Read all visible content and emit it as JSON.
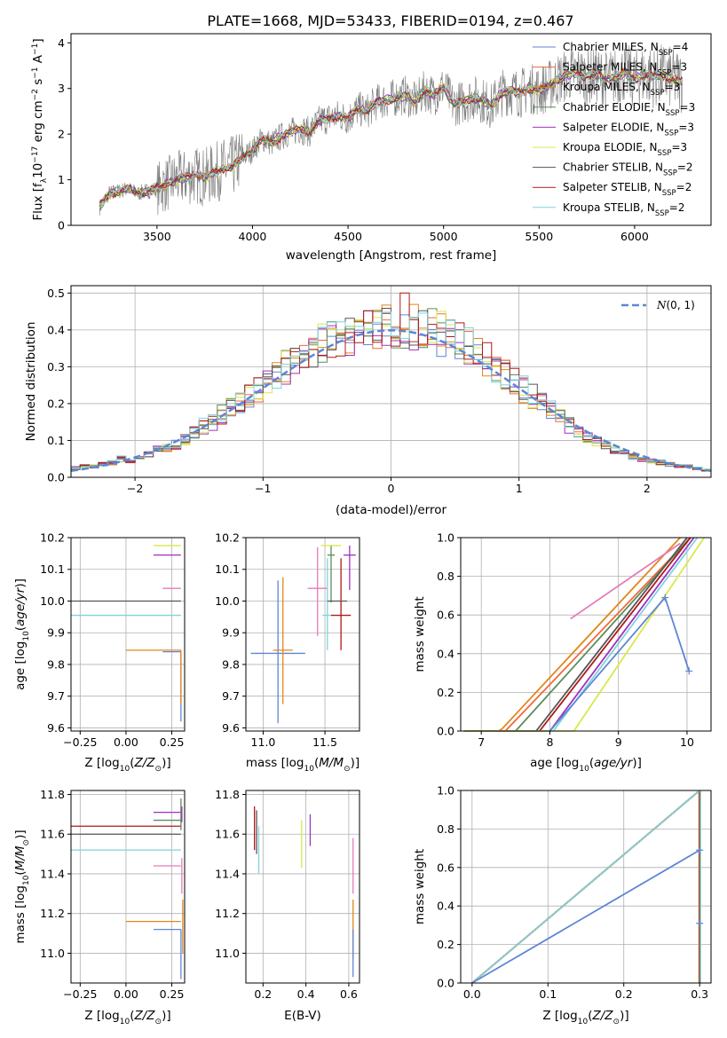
{
  "figure": {
    "title": "PLATE=1668, MJD=53433, FIBERID=0194, z=0.467"
  },
  "series": [
    {
      "name": "Chabrier MILES, N_SSP=4",
      "base": "Chabrier MILES, N",
      "sub": "SSP",
      "suffix": "=4",
      "color": "#5e86d6"
    },
    {
      "name": "Salpeter MILES, N_SSP=3",
      "base": "Salpeter MILES, N",
      "sub": "SSP",
      "suffix": "=3",
      "color": "#ef6a3a"
    },
    {
      "name": "Kroupa MILES, N_SSP=3",
      "base": "Kroupa MILES, N",
      "sub": "SSP",
      "suffix": "=3",
      "color": "#e0881a"
    },
    {
      "name": "Chabrier ELODIE, N_SSP=3",
      "base": "Chabrier ELODIE, N",
      "sub": "SSP",
      "suffix": "=3",
      "color": "#5c8c5c"
    },
    {
      "name": "Salpeter ELODIE, N_SSP=3",
      "base": "Salpeter ELODIE, N",
      "sub": "SSP",
      "suffix": "=3",
      "color": "#a030c0"
    },
    {
      "name": "Kroupa ELODIE, N_SSP=3",
      "base": "Kroupa ELODIE, N",
      "sub": "SSP",
      "suffix": "=3",
      "color": "#d9e84a"
    },
    {
      "name": "Chabrier STELIB, N_SSP=2",
      "base": "Chabrier STELIB, N",
      "sub": "SSP",
      "suffix": "=2",
      "color": "#555555"
    },
    {
      "name": "Salpeter STELIB, N_SSP=2",
      "base": "Salpeter STELIB, N",
      "sub": "SSP",
      "suffix": "=2",
      "color": "#b01818"
    },
    {
      "name": "Kroupa STELIB, N_SSP=2",
      "base": "Kroupa STELIB, N",
      "sub": "SSP",
      "suffix": "=2",
      "color": "#7fd4dc"
    }
  ],
  "colors": {
    "data": "#7a7a7a",
    "extra": "#e87ab8",
    "gaussian": "#5b87d6"
  },
  "chart_data": [
    {
      "id": "spectrum",
      "type": "line",
      "xlabel": "wavelength [Angstrom, rest frame]",
      "ylabel": "Flux [f_λ 10^-17 erg cm^-2 s^-1 A^-1]",
      "xlim": [
        3050,
        6400
      ],
      "ylim": [
        0,
        4.2
      ],
      "xticks": [
        3500,
        4000,
        4500,
        5000,
        5500,
        6000
      ],
      "yticks": [
        0,
        1,
        2,
        3,
        4
      ],
      "model_continuum": {
        "x": [
          3200,
          3250,
          3300,
          3350,
          3400,
          3450,
          3500,
          3550,
          3600,
          3650,
          3700,
          3750,
          3800,
          3850,
          3900,
          3950,
          4000,
          4050,
          4100,
          4150,
          4200,
          4250,
          4300,
          4350,
          4400,
          4450,
          4500,
          4550,
          4600,
          4650,
          4700,
          4750,
          4800,
          4850,
          4900,
          4950,
          5000,
          5050,
          5100,
          5150,
          5200,
          5250,
          5300,
          5350,
          5400,
          5450,
          5500,
          5550,
          5600,
          5650,
          5700,
          5750,
          5800,
          5850,
          5900,
          5950,
          6000,
          6050,
          6100,
          6150,
          6200,
          6250
        ],
        "y": [
          0.4,
          0.7,
          0.75,
          0.8,
          0.7,
          0.75,
          0.8,
          0.9,
          1.0,
          1.05,
          1.1,
          1.05,
          1.15,
          1.25,
          1.3,
          1.5,
          1.65,
          1.9,
          1.8,
          1.95,
          2.05,
          2.1,
          2.05,
          2.3,
          2.35,
          2.4,
          2.35,
          2.55,
          2.5,
          2.7,
          2.75,
          2.8,
          2.85,
          2.7,
          2.95,
          2.85,
          3.05,
          2.65,
          2.7,
          2.8,
          2.75,
          2.6,
          2.9,
          2.95,
          2.9,
          3.0,
          2.95,
          3.05,
          3.2,
          3.3,
          3.35,
          3.25,
          3.3,
          3.2,
          3.25,
          3.35,
          3.2,
          3.3,
          3.25,
          3.3,
          3.2,
          3.15
        ]
      }
    },
    {
      "id": "residuals",
      "type": "histogram",
      "xlabel": "(data-model)/error",
      "ylabel": "Normed distribution",
      "xlim": [
        -2.5,
        2.5
      ],
      "ylim": [
        0,
        0.52
      ],
      "xticks": [
        -2,
        -1,
        0,
        1,
        2
      ],
      "yticks": [
        0.0,
        0.1,
        0.2,
        0.3,
        0.4,
        0.5
      ],
      "bin_width": 0.1,
      "gaussian_label": "N(0, 1)",
      "envelope": [
        0.025,
        0.03,
        0.03,
        0.035,
        0.04,
        0.05,
        0.045,
        0.05,
        0.06,
        0.075,
        0.08,
        0.09,
        0.1,
        0.12,
        0.14,
        0.15,
        0.17,
        0.19,
        0.2,
        0.22,
        0.24,
        0.26,
        0.28,
        0.3,
        0.32,
        0.34,
        0.35,
        0.36,
        0.37,
        0.38,
        0.385,
        0.39,
        0.395,
        0.4,
        0.405,
        0.41,
        0.41,
        0.405,
        0.4,
        0.395,
        0.39,
        0.38,
        0.37,
        0.355,
        0.34,
        0.32,
        0.3,
        0.28,
        0.26,
        0.24,
        0.22,
        0.2,
        0.18,
        0.16,
        0.14,
        0.125,
        0.11,
        0.1,
        0.09,
        0.075,
        0.065,
        0.055,
        0.05,
        0.045,
        0.04,
        0.035,
        0.03,
        0.03,
        0.025,
        0.02
      ]
    },
    {
      "id": "age_vs_Z",
      "type": "scatter",
      "xlabel": "Z [log10(Z/Z☉)]",
      "ylabel": "age [log10(age/yr)]",
      "xlim": [
        -0.3,
        0.32
      ],
      "ylim": [
        9.59,
        10.2
      ],
      "xticks": [
        -0.25,
        0.0,
        0.25
      ],
      "yticks": [
        9.6,
        9.7,
        9.8,
        9.9,
        10.0,
        10.1,
        10.2
      ],
      "points": [
        {
          "s": 0,
          "x": 0.3,
          "y": 9.84,
          "xerr": [
            0.1,
            0.0
          ],
          "yerr": [
            0.22,
            0.0
          ]
        },
        {
          "s": 2,
          "x": 0.3,
          "y": 9.845,
          "xerr": [
            0.3,
            0.0
          ],
          "yerr": [
            0.17,
            0.0
          ]
        },
        {
          "s": 6,
          "x": 0.3,
          "y": 10.0,
          "xerr": [
            0.6,
            0.0
          ],
          "yerr": [
            0.0,
            0.0
          ]
        },
        {
          "s": 8,
          "x": 0.3,
          "y": 9.955,
          "xerr": [
            0.6,
            0.0
          ],
          "yerr": [
            0.0,
            0.0
          ]
        },
        {
          "s": 5,
          "x": 0.3,
          "y": 10.175,
          "xerr": [
            0.15,
            0.0
          ],
          "yerr": [
            0.0,
            0.0
          ]
        },
        {
          "s": 4,
          "x": 0.3,
          "y": 10.145,
          "xerr": [
            0.15,
            0.0
          ],
          "yerr": [
            0.0,
            0.0
          ]
        },
        {
          "s": 1,
          "x": 0.3,
          "y": 10.04,
          "xerr": [
            0.1,
            0.0
          ],
          "yerr": [
            0.0,
            0.0
          ]
        }
      ]
    },
    {
      "id": "age_vs_mass",
      "type": "scatter",
      "xlabel": "mass [log10(M/M☉)]",
      "ylabel": "",
      "xlim": [
        10.86,
        11.78
      ],
      "ylim": [
        9.59,
        10.2
      ],
      "xticks": [
        11.0,
        11.5
      ],
      "yticks": [
        9.6,
        9.7,
        9.8,
        9.9,
        10.0,
        10.1,
        10.2
      ],
      "points": [
        {
          "s": 0,
          "x": 11.12,
          "y": 9.835,
          "xerr": [
            0.22,
            0.22
          ],
          "yerr": [
            0.22,
            0.23
          ]
        },
        {
          "s": 2,
          "x": 11.16,
          "y": 9.845,
          "xerr": [
            0.08,
            0.08
          ],
          "yerr": [
            0.17,
            0.23
          ]
        },
        {
          "s": 1,
          "x": 11.44,
          "y": 10.04,
          "xerr": [
            0.08,
            0.08
          ],
          "yerr": [
            0.15,
            0.13
          ]
        },
        {
          "s": 8,
          "x": 11.52,
          "y": 9.955,
          "xerr": [
            0.04,
            0.04
          ],
          "yerr": [
            0.11,
            0.18
          ]
        },
        {
          "s": 3,
          "x": 11.55,
          "y": 10.145,
          "xerr": [
            0.03,
            0.03
          ],
          "yerr": [
            0.15,
            0.03
          ]
        },
        {
          "s": 7,
          "x": 11.63,
          "y": 9.955,
          "xerr": [
            0.08,
            0.08
          ],
          "yerr": [
            0.11,
            0.18
          ]
        },
        {
          "s": 6,
          "x": 11.6,
          "y": 10.0,
          "xerr": [
            0.08,
            0.08
          ],
          "yerr": [
            0.0,
            0.0
          ]
        },
        {
          "s": 4,
          "x": 11.7,
          "y": 10.145,
          "xerr": [
            0.05,
            0.05
          ],
          "yerr": [
            0.11,
            0.03
          ]
        },
        {
          "s": 5,
          "x": 11.55,
          "y": 10.175,
          "xerr": [
            0.08,
            0.08
          ],
          "yerr": [
            0.0,
            0.0
          ]
        }
      ]
    },
    {
      "id": "massweight_vs_age",
      "type": "line",
      "xlabel": "age [log10(age/yr)]",
      "ylabel": "mass weight",
      "xlim": [
        6.7,
        10.35
      ],
      "ylim": [
        0,
        1
      ],
      "xticks": [
        7,
        8,
        9,
        10
      ],
      "yticks": [
        0.0,
        0.2,
        0.4,
        0.6,
        0.8,
        1.0
      ],
      "lines": [
        {
          "s": 2,
          "x": [
            7.25,
            7.3,
            9.9
          ],
          "y": [
            0,
            0.01,
            1.0
          ]
        },
        {
          "s": 1,
          "x": 7.35,
          "x2": 10.05,
          "y": 0,
          "y2": 1.0
        },
        {
          "s": 3,
          "x": 7.5,
          "x2": 10.05,
          "y": 0,
          "y2": 1.0
        },
        {
          "s": 6,
          "x": 7.8,
          "x2": 10.0,
          "y": 0,
          "y2": 1.0
        },
        {
          "s": 7,
          "x": 7.85,
          "x2": 10.05,
          "y": 0,
          "y2": 1.0
        },
        {
          "s": 4,
          "x": 8.0,
          "x2": 10.1,
          "y": 0,
          "y2": 1.0
        },
        {
          "s": 8,
          "x": 8.05,
          "x2": 10.15,
          "y": 0,
          "y2": 1.0
        },
        {
          "s": 5,
          "x": 8.35,
          "x2": 10.25,
          "y": 0,
          "y2": 1.0
        }
      ],
      "miles_chabrier": {
        "x": [
          8.0,
          9.68,
          10.03
        ],
        "y": [
          0,
          0.69,
          0.31
        ]
      }
    },
    {
      "id": "mass_vs_Z",
      "type": "scatter",
      "xlabel": "Z [log10(Z/Z☉)]",
      "ylabel": "mass [log10(M/M☉)]",
      "xlim": [
        -0.3,
        0.32
      ],
      "ylim": [
        10.85,
        11.82
      ],
      "xticks": [
        -0.25,
        0.0,
        0.25
      ],
      "yticks": [
        11.0,
        11.2,
        11.4,
        11.6,
        11.8
      ],
      "points": [
        {
          "s": 7,
          "x": 0.3,
          "y": 11.64,
          "xerr": [
            0.6,
            0.0
          ]
        },
        {
          "s": 6,
          "x": 0.3,
          "y": 11.6,
          "xerr": [
            0.6,
            0.0
          ]
        },
        {
          "s": 8,
          "x": 0.3,
          "y": 11.52,
          "xerr": [
            0.6,
            0.0
          ]
        },
        {
          "s": 1,
          "x": 0.3,
          "y": 11.44,
          "xerr": [
            0.15,
            0.0
          ]
        },
        {
          "s": 2,
          "x": 0.3,
          "y": 11.16,
          "xerr": [
            0.3,
            0.0
          ]
        },
        {
          "s": 0,
          "x": 0.3,
          "y": 11.12,
          "xerr": [
            0.15,
            0.0
          ]
        },
        {
          "s": 4,
          "x": 0.3,
          "y": 11.71,
          "xerr": [
            0.15,
            0.0
          ]
        },
        {
          "s": 3,
          "x": 0.3,
          "y": 11.67,
          "xerr": [
            0.15,
            0.0
          ]
        }
      ]
    },
    {
      "id": "mass_vs_EBV",
      "type": "scatter",
      "xlabel": "E(B-V)",
      "ylabel": "",
      "xlim": [
        0.12,
        0.65
      ],
      "ylim": [
        10.85,
        11.82
      ],
      "xticks": [
        0.2,
        0.4,
        0.6
      ],
      "yticks": [
        11.0,
        11.2,
        11.4,
        11.6,
        11.8
      ],
      "points": [
        {
          "s": 7,
          "x": 0.16,
          "y": 11.62,
          "yerr": [
            0.1,
            0.12
          ]
        },
        {
          "s": 6,
          "x": 0.17,
          "y": 11.6,
          "yerr": [
            0.1,
            0.12
          ]
        },
        {
          "s": 8,
          "x": 0.18,
          "y": 11.52,
          "yerr": [
            0.12,
            0.12
          ]
        },
        {
          "s": 5,
          "x": 0.38,
          "y": 11.55,
          "yerr": [
            0.12,
            0.12
          ]
        },
        {
          "s": 4,
          "x": 0.42,
          "y": 11.62,
          "yerr": [
            0.08,
            0.08
          ]
        },
        {
          "s": 1,
          "x": 0.62,
          "y": 11.44,
          "yerr": [
            0.14,
            0.14
          ]
        },
        {
          "s": 2,
          "x": 0.62,
          "y": 11.12,
          "yerr": [
            0.15,
            0.15
          ]
        },
        {
          "s": 0,
          "x": 0.62,
          "y": 11.0,
          "yerr": [
            0.12,
            0.12
          ]
        }
      ]
    },
    {
      "id": "massweight_vs_Z",
      "type": "line",
      "xlabel": "Z [log10(Z/Z☉)]",
      "ylabel": "mass weight",
      "xlim": [
        -0.015,
        0.315
      ],
      "ylim": [
        0,
        1
      ],
      "xticks": [
        0.0,
        0.1,
        0.2,
        0.3
      ],
      "yticks": [
        0.0,
        0.2,
        0.4,
        0.6,
        0.8,
        1.0
      ],
      "diag": {
        "x": [
          0.0,
          0.3
        ],
        "y": [
          0.0,
          1.0
        ]
      },
      "miles_chabrier": {
        "x": [
          0.0,
          0.3
        ],
        "y": [
          0.0,
          0.69
        ]
      }
    }
  ]
}
